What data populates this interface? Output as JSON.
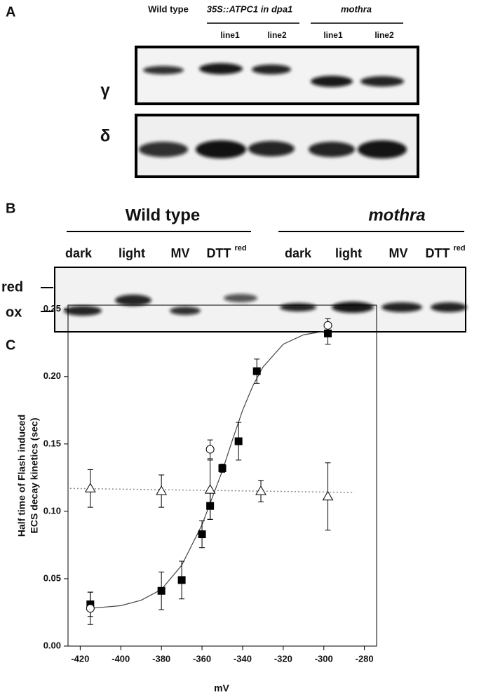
{
  "panel_a": {
    "label": "A",
    "columns": [
      "Wild type",
      "35S::ATPC1 in dpa1",
      "mothra"
    ],
    "lines": [
      "line1",
      "line2",
      "line1",
      "line2"
    ],
    "blots": [
      "γ",
      "δ"
    ]
  },
  "panel_b": {
    "label": "B",
    "groups": [
      "Wild type",
      "mothra"
    ],
    "lanes": [
      {
        "name": "dark"
      },
      {
        "name": "light"
      },
      {
        "name": "MV"
      },
      {
        "name": "DTT",
        "sup": "red"
      },
      {
        "name": "dark"
      },
      {
        "name": "light"
      },
      {
        "name": "MV"
      },
      {
        "name": "DTT",
        "sup": "red"
      }
    ],
    "markers": [
      "red",
      "ox"
    ]
  },
  "panel_c": {
    "label": "C"
  },
  "chart_data": {
    "type": "scatter",
    "x_label": "mV",
    "y_label": [
      "Half time of Flash induced",
      "ECS decay kinetics (sec)"
    ],
    "xlim": [
      -426,
      -274
    ],
    "xticks": [
      -420,
      -400,
      -380,
      -360,
      -340,
      -320,
      -300,
      -280
    ],
    "ylim": [
      0,
      0.253
    ],
    "yticks": [
      {
        "value": 0,
        "label": "0.00"
      },
      0.05,
      {
        "value": 0.1,
        "label": "0.10"
      },
      0.15,
      {
        "value": 0.2,
        "label": "0.20"
      },
      0.25
    ],
    "series": [
      {
        "marker": "line",
        "color": "#444444",
        "x": [
          -415,
          -400,
          -390,
          -380,
          -370,
          -360,
          -355,
          -350,
          -345,
          -340,
          -335,
          -330,
          -320,
          -310,
          -298
        ],
        "values": [
          0.028,
          0.03,
          0.034,
          0.042,
          0.06,
          0.09,
          0.11,
          0.13,
          0.153,
          0.175,
          0.193,
          0.207,
          0.224,
          0.231,
          0.234
        ]
      },
      {
        "marker": "dotted",
        "color": "#888888",
        "x": [
          -425,
          -285
        ],
        "values": [
          0.117,
          0.114
        ]
      },
      {
        "marker": "square",
        "color": "#000000",
        "x": [
          -415,
          -380,
          -370,
          -360,
          -356,
          -350,
          -342,
          -333,
          -298
        ],
        "values": [
          0.031,
          0.041,
          0.049,
          0.083,
          0.104,
          0.132,
          0.152,
          0.204,
          0.232
        ],
        "errors": [
          0.009,
          0.014,
          0.014,
          0.01,
          0.01,
          0.003,
          0.014,
          0.009,
          0.008
        ]
      },
      {
        "marker": "circle",
        "color": "#000000",
        "x": [
          -415,
          -356,
          -298
        ],
        "values": [
          0.028,
          0.146,
          0.238
        ],
        "errors": [
          0.012,
          0.007,
          0.005
        ]
      },
      {
        "marker": "triangle",
        "color": "#000000",
        "x": [
          -415,
          -380,
          -356,
          -331,
          -298
        ],
        "values": [
          0.117,
          0.115,
          0.116,
          0.115,
          0.111
        ],
        "errors": [
          0.014,
          0.012,
          0.022,
          0.008,
          0.025
        ]
      }
    ]
  }
}
